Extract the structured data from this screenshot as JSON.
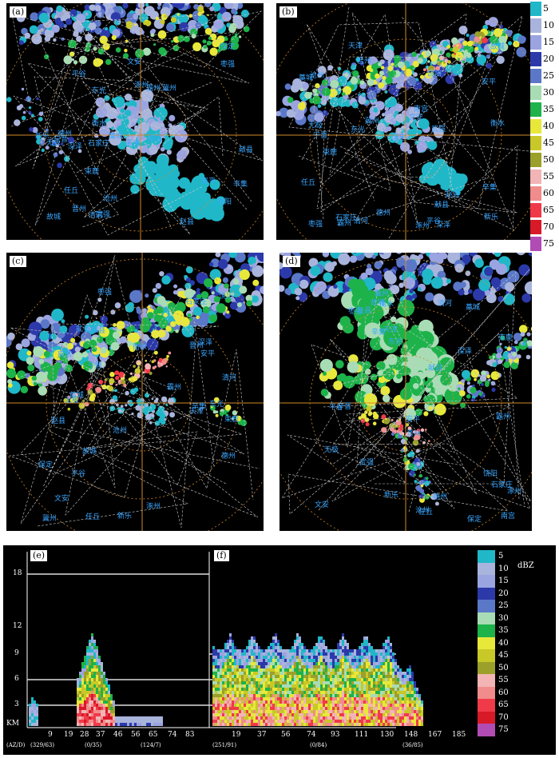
{
  "colors": {
    "background": "#000000",
    "city_label": "#3aa6ff",
    "range_ring": "#d28a2a",
    "reference_line": "#ffffff"
  },
  "palette": {
    "5": "#20b8c8",
    "10": "#a9b4dc",
    "15": "#9aa4e0",
    "20": "#2b3aa8",
    "25": "#5b78c8",
    "30": "#a8dcb4",
    "35": "#1db34a",
    "40": "#e8e83a",
    "45": "#c8c828",
    "50": "#9aa02a",
    "55": "#f2b4b4",
    "60": "#f08c8c",
    "65": "#f03a4a",
    "70": "#d81a28",
    "75": "#b04cb4"
  },
  "legend_top": {
    "values": [
      "5",
      "10",
      "15",
      "20",
      "25",
      "30",
      "35",
      "40",
      "45",
      "50",
      "55",
      "60",
      "65",
      "70",
      "75"
    ]
  },
  "panels": {
    "a": {
      "label": "(a)",
      "cities": [
        "保定",
        "无极",
        "新乐",
        "藁城",
        "石家庄",
        "赵县",
        "晋州",
        "辛集",
        "深泽",
        "衡水",
        "宁晋",
        "安平",
        "束鹿",
        "冀州",
        "武强",
        "饶阳",
        "献县",
        "任丘",
        "沧州",
        "德州",
        "故城",
        "文安",
        "霸州",
        "涿州",
        "平谷",
        "天津",
        "东光",
        "枣强",
        "南宫",
        "清河"
      ]
    },
    "b": {
      "label": "(b)"
    },
    "c": {
      "label": "(c)"
    },
    "d": {
      "label": "(d)"
    }
  },
  "section_e": {
    "label": "(e)",
    "y_ticks": [
      "18",
      "12",
      "9",
      "6",
      "3"
    ],
    "y_unit": "KM",
    "x_ticks": [
      "9",
      "19",
      "28",
      "37",
      "46",
      "56",
      "65",
      "74",
      "83"
    ],
    "az_left": "(AZ/D)",
    "az_labels": [
      "(329/63)",
      "(0/35)",
      "(124/7)"
    ]
  },
  "section_f": {
    "label": "(f)",
    "x_ticks": [
      "19",
      "37",
      "56",
      "74",
      "93",
      "111",
      "130",
      "148",
      "167",
      "185"
    ],
    "az_labels": [
      "(251/91)",
      "(0/84)",
      "(36/85)"
    ]
  },
  "legend_bottom": {
    "unit": "dBZ",
    "values": [
      "5",
      "10",
      "15",
      "20",
      "25",
      "30",
      "35",
      "40",
      "45",
      "50",
      "55",
      "60",
      "65",
      "70",
      "75"
    ]
  }
}
